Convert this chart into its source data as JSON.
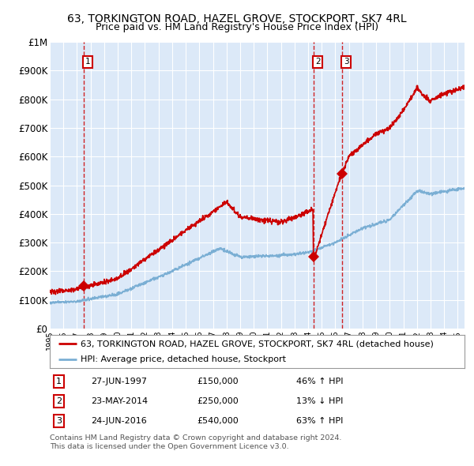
{
  "title": "63, TORKINGTON ROAD, HAZEL GROVE, STOCKPORT, SK7 4RL",
  "subtitle": "Price paid vs. HM Land Registry's House Price Index (HPI)",
  "hpi_label": "HPI: Average price, detached house, Stockport",
  "property_label": "63, TORKINGTON ROAD, HAZEL GROVE, STOCKPORT, SK7 4RL (detached house)",
  "x_start_year": 1995.0,
  "x_end_year": 2025.5,
  "y_min": 0,
  "y_max": 1000000,
  "y_ticks": [
    0,
    100000,
    200000,
    300000,
    400000,
    500000,
    600000,
    700000,
    800000,
    900000,
    1000000
  ],
  "y_tick_labels": [
    "£0",
    "£100K",
    "£200K",
    "£300K",
    "£400K",
    "£500K",
    "£600K",
    "£700K",
    "£800K",
    "£900K",
    "£1M"
  ],
  "background_color": "#dce9f8",
  "grid_color": "#ffffff",
  "hpi_color": "#7bafd4",
  "property_color": "#cc0000",
  "sale_color": "#cc0000",
  "vline_color": "#cc0000",
  "sales": [
    {
      "date": 1997.486,
      "price": 150000,
      "label": "1"
    },
    {
      "date": 2014.388,
      "price": 250000,
      "label": "2"
    },
    {
      "date": 2016.478,
      "price": 540000,
      "label": "3"
    }
  ],
  "table_entries": [
    {
      "label": "1",
      "date": "27-JUN-1997",
      "price": "£150,000",
      "pct": "46%",
      "arrow": "↑",
      "hpi": "HPI"
    },
    {
      "label": "2",
      "date": "23-MAY-2014",
      "price": "£250,000",
      "pct": "13%",
      "arrow": "↓",
      "hpi": "HPI"
    },
    {
      "label": "3",
      "date": "24-JUN-2016",
      "price": "£540,000",
      "pct": "63%",
      "arrow": "↑",
      "hpi": "HPI"
    }
  ],
  "footer": [
    "Contains HM Land Registry data © Crown copyright and database right 2024.",
    "This data is licensed under the Open Government Licence v3.0."
  ]
}
